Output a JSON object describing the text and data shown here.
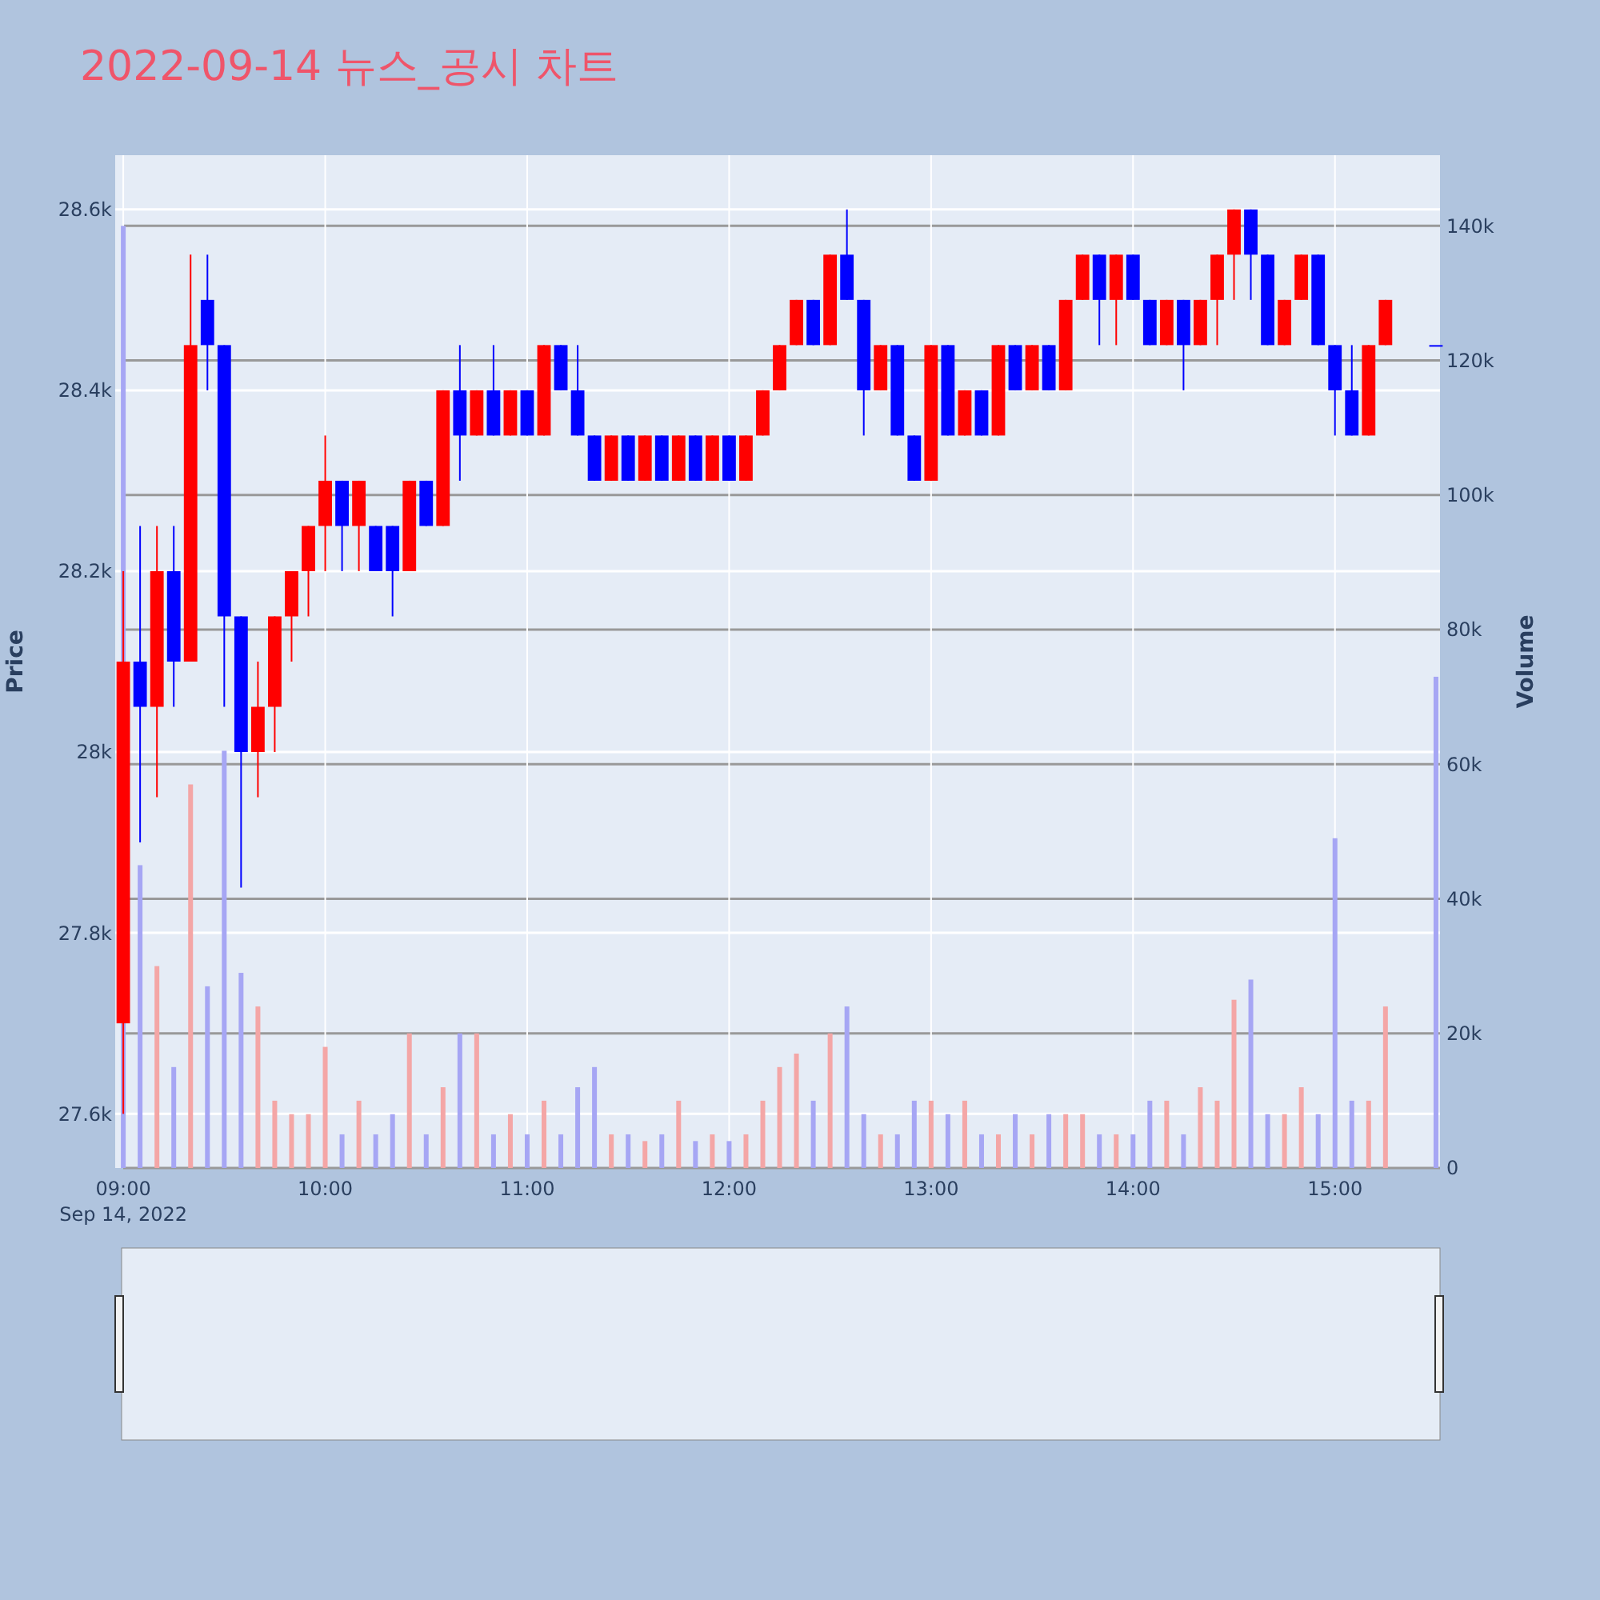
{
  "chart_data": {
    "type": "candlestick",
    "title": "2022-09-14 뉴스_공시 차트",
    "ylabel": "Price",
    "y2label": "Volume",
    "annotations": [
      "Sep 14, 2022"
    ],
    "x": [
      9,
      9.0833,
      9.1667,
      9.25,
      9.3333,
      9.4167,
      9.5,
      9.5833,
      9.6667,
      9.75,
      9.8333,
      9.9167,
      10,
      10.0833,
      10.1667,
      10.25,
      10.3333,
      10.4167,
      10.5,
      10.5833,
      10.6667,
      10.75,
      10.8333,
      10.9167,
      11,
      11.0833,
      11.1667,
      11.25,
      11.3333,
      11.4167,
      11.5,
      11.5833,
      11.6667,
      11.75,
      11.8333,
      11.9167,
      12,
      12.0833,
      12.1667,
      12.25,
      12.3333,
      12.4167,
      12.5,
      12.5833,
      12.6667,
      12.75,
      12.8333,
      12.9167,
      13,
      13.0833,
      13.1667,
      13.25,
      13.3333,
      13.4167,
      13.5,
      13.5833,
      13.6667,
      13.75,
      13.8333,
      13.9167,
      14,
      14.0833,
      14.1667,
      14.25,
      14.3333,
      14.4167,
      14.5,
      14.5833,
      14.6667,
      14.75,
      14.8333,
      14.9167,
      15,
      15.0833,
      15.1667,
      15.25,
      15.5
    ],
    "series": [
      {
        "ohlc": [
          [
            27700,
            28200,
            27600,
            28100
          ],
          [
            28100,
            28250,
            27900,
            28050
          ],
          [
            28050,
            28250,
            27950,
            28200
          ],
          [
            28200,
            28250,
            28050,
            28100
          ],
          [
            28100,
            28550,
            28100,
            28450
          ],
          [
            28500,
            28550,
            28400,
            28450
          ],
          [
            28450,
            28450,
            28050,
            28150
          ],
          [
            28150,
            28150,
            27850,
            28000
          ],
          [
            28000,
            28100,
            27950,
            28050
          ],
          [
            28050,
            28150,
            28000,
            28150
          ],
          [
            28150,
            28200,
            28100,
            28200
          ],
          [
            28200,
            28250,
            28150,
            28250
          ],
          [
            28250,
            28350,
            28200,
            28300
          ],
          [
            28300,
            28300,
            28200,
            28250
          ],
          [
            28250,
            28300,
            28200,
            28300
          ],
          [
            28250,
            28250,
            28200,
            28200
          ],
          [
            28250,
            28250,
            28150,
            28200
          ],
          [
            28200,
            28300,
            28200,
            28300
          ],
          [
            28300,
            28300,
            28250,
            28250
          ],
          [
            28250,
            28400,
            28250,
            28400
          ],
          [
            28400,
            28450,
            28300,
            28350
          ],
          [
            28350,
            28400,
            28350,
            28400
          ],
          [
            28400,
            28450,
            28350,
            28350
          ],
          [
            28350,
            28400,
            28350,
            28400
          ],
          [
            28400,
            28400,
            28350,
            28350
          ],
          [
            28350,
            28450,
            28350,
            28450
          ],
          [
            28450,
            28450,
            28400,
            28400
          ],
          [
            28400,
            28450,
            28350,
            28350
          ],
          [
            28350,
            28350,
            28300,
            28300
          ],
          [
            28300,
            28350,
            28300,
            28350
          ],
          [
            28350,
            28350,
            28300,
            28300
          ],
          [
            28300,
            28350,
            28300,
            28350
          ],
          [
            28350,
            28350,
            28300,
            28300
          ],
          [
            28300,
            28350,
            28300,
            28350
          ],
          [
            28350,
            28350,
            28300,
            28300
          ],
          [
            28300,
            28350,
            28300,
            28350
          ],
          [
            28350,
            28350,
            28300,
            28300
          ],
          [
            28300,
            28350,
            28300,
            28350
          ],
          [
            28350,
            28400,
            28350,
            28400
          ],
          [
            28400,
            28450,
            28400,
            28450
          ],
          [
            28450,
            28500,
            28450,
            28500
          ],
          [
            28500,
            28500,
            28450,
            28450
          ],
          [
            28450,
            28550,
            28450,
            28550
          ],
          [
            28550,
            28600,
            28500,
            28500
          ],
          [
            28500,
            28500,
            28350,
            28400
          ],
          [
            28400,
            28450,
            28400,
            28450
          ],
          [
            28450,
            28450,
            28350,
            28350
          ],
          [
            28350,
            28350,
            28300,
            28300
          ],
          [
            28300,
            28450,
            28300,
            28450
          ],
          [
            28450,
            28450,
            28350,
            28350
          ],
          [
            28350,
            28400,
            28350,
            28400
          ],
          [
            28400,
            28400,
            28350,
            28350
          ],
          [
            28350,
            28450,
            28350,
            28450
          ],
          [
            28450,
            28450,
            28400,
            28400
          ],
          [
            28400,
            28450,
            28400,
            28450
          ],
          [
            28450,
            28450,
            28400,
            28400
          ],
          [
            28400,
            28500,
            28400,
            28500
          ],
          [
            28500,
            28550,
            28500,
            28550
          ],
          [
            28550,
            28550,
            28450,
            28500
          ],
          [
            28500,
            28550,
            28450,
            28550
          ],
          [
            28550,
            28550,
            28500,
            28500
          ],
          [
            28500,
            28500,
            28450,
            28450
          ],
          [
            28450,
            28500,
            28450,
            28500
          ],
          [
            28500,
            28500,
            28400,
            28450
          ],
          [
            28450,
            28500,
            28450,
            28500
          ],
          [
            28500,
            28550,
            28450,
            28550
          ],
          [
            28550,
            28600,
            28500,
            28600
          ],
          [
            28600,
            28600,
            28500,
            28550
          ],
          [
            28550,
            28550,
            28450,
            28450
          ],
          [
            28450,
            28500,
            28450,
            28500
          ],
          [
            28500,
            28550,
            28500,
            28550
          ],
          [
            28550,
            28550,
            28450,
            28450
          ],
          [
            28450,
            28450,
            28350,
            28400
          ],
          [
            28400,
            28450,
            28350,
            28350
          ],
          [
            28350,
            28450,
            28350,
            28450
          ],
          [
            28450,
            28500,
            28450,
            28500
          ],
          [
            28450,
            28450,
            28450,
            28450
          ]
        ],
        "colors": [
          "#ff0000",
          "#0000ff",
          "#ff0000",
          "#0000ff",
          "#ff0000",
          "#0000ff",
          "#0000ff",
          "#0000ff",
          "#ff0000",
          "#ff0000",
          "#ff0000",
          "#ff0000",
          "#ff0000",
          "#0000ff",
          "#ff0000",
          "#0000ff",
          "#0000ff",
          "#ff0000",
          "#0000ff",
          "#ff0000",
          "#0000ff",
          "#ff0000",
          "#0000ff",
          "#ff0000",
          "#0000ff",
          "#ff0000",
          "#0000ff",
          "#0000ff",
          "#0000ff",
          "#ff0000",
          "#0000ff",
          "#ff0000",
          "#0000ff",
          "#ff0000",
          "#0000ff",
          "#ff0000",
          "#0000ff",
          "#ff0000",
          "#ff0000",
          "#ff0000",
          "#ff0000",
          "#0000ff",
          "#ff0000",
          "#0000ff",
          "#0000ff",
          "#ff0000",
          "#0000ff",
          "#0000ff",
          "#ff0000",
          "#0000ff",
          "#ff0000",
          "#0000ff",
          "#ff0000",
          "#0000ff",
          "#ff0000",
          "#0000ff",
          "#ff0000",
          "#ff0000",
          "#0000ff",
          "#ff0000",
          "#0000ff",
          "#0000ff",
          "#ff0000",
          "#0000ff",
          "#ff0000",
          "#ff0000",
          "#ff0000",
          "#0000ff",
          "#0000ff",
          "#ff0000",
          "#ff0000",
          "#0000ff",
          "#0000ff",
          "#0000ff",
          "#ff0000",
          "#ff0000",
          "#0000ff"
        ]
      },
      {
        "type": "bar",
        "axis": "y2",
        "values": [
          140000,
          45000,
          30000,
          15000,
          57000,
          27000,
          62000,
          29000,
          24000,
          10000,
          8000,
          8000,
          18000,
          5000,
          10000,
          5000,
          8000,
          20000,
          5000,
          12000,
          20000,
          20000,
          5000,
          8000,
          5000,
          10000,
          5000,
          12000,
          15000,
          5000,
          5000,
          4000,
          5000,
          10000,
          4000,
          5000,
          4000,
          5000,
          10000,
          15000,
          17000,
          10000,
          20000,
          24000,
          8000,
          5000,
          5000,
          10000,
          10000,
          8000,
          10000,
          5000,
          5000,
          8000,
          5000,
          8000,
          8000,
          8000,
          5000,
          5000,
          5000,
          10000,
          10000,
          5000,
          12000,
          10000,
          25000,
          28000,
          8000,
          8000,
          12000,
          8000,
          49000,
          10000,
          10000,
          24000,
          73000
        ],
        "colors": [
          "#a6a6f4",
          "#a6a6f4",
          "#f4a6a6",
          "#a6a6f4",
          "#f4a6a6",
          "#a6a6f4",
          "#a6a6f4",
          "#a6a6f4",
          "#f4a6a6",
          "#f4a6a6",
          "#f4a6a6",
          "#f4a6a6",
          "#f4a6a6",
          "#a6a6f4",
          "#f4a6a6",
          "#a6a6f4",
          "#a6a6f4",
          "#f4a6a6",
          "#a6a6f4",
          "#f4a6a6",
          "#a6a6f4",
          "#f4a6a6",
          "#a6a6f4",
          "#f4a6a6",
          "#a6a6f4",
          "#f4a6a6",
          "#a6a6f4",
          "#a6a6f4",
          "#a6a6f4",
          "#f4a6a6",
          "#a6a6f4",
          "#f4a6a6",
          "#a6a6f4",
          "#f4a6a6",
          "#a6a6f4",
          "#f4a6a6",
          "#a6a6f4",
          "#f4a6a6",
          "#f4a6a6",
          "#f4a6a6",
          "#f4a6a6",
          "#a6a6f4",
          "#f4a6a6",
          "#a6a6f4",
          "#a6a6f4",
          "#f4a6a6",
          "#a6a6f4",
          "#a6a6f4",
          "#f4a6a6",
          "#a6a6f4",
          "#f4a6a6",
          "#a6a6f4",
          "#f4a6a6",
          "#a6a6f4",
          "#f4a6a6",
          "#a6a6f4",
          "#f4a6a6",
          "#f4a6a6",
          "#a6a6f4",
          "#f4a6a6",
          "#a6a6f4",
          "#a6a6f4",
          "#f4a6a6",
          "#a6a6f4",
          "#f4a6a6",
          "#f4a6a6",
          "#f4a6a6",
          "#a6a6f4",
          "#a6a6f4",
          "#f4a6a6",
          "#f4a6a6",
          "#a6a6f4",
          "#a6a6f4",
          "#a6a6f4",
          "#f4a6a6",
          "#f4a6a6",
          "#a6a6f4"
        ]
      }
    ],
    "xlim": [
      8.96,
      15.52
    ],
    "xticks": [
      {
        "value": 9,
        "label": "09:00"
      },
      {
        "value": 10,
        "label": "10:00"
      },
      {
        "value": 11,
        "label": "11:00"
      },
      {
        "value": 12,
        "label": "12:00"
      },
      {
        "value": 13,
        "label": "13:00"
      },
      {
        "value": 14,
        "label": "14:00"
      },
      {
        "value": 15,
        "label": "15:00"
      }
    ],
    "ylim": [
      27540,
      28660
    ],
    "yticks": [
      {
        "value": 27600,
        "label": "27.6k"
      },
      {
        "value": 27800,
        "label": "27.8k"
      },
      {
        "value": 28000,
        "label": "28k"
      },
      {
        "value": 28200,
        "label": "28.2k"
      },
      {
        "value": 28400,
        "label": "28.4k"
      },
      {
        "value": 28600,
        "label": "28.6k"
      }
    ],
    "y2lim": [
      0,
      150500
    ],
    "y2ticks": [
      0,
      {
        "value": 20000,
        "label": "20k"
      },
      {
        "value": 40000,
        "label": "40k"
      },
      {
        "value": 60000,
        "label": "60k"
      },
      {
        "value": 80000,
        "label": "80k"
      },
      {
        "value": 100000,
        "label": "100k"
      },
      {
        "value": 120000,
        "label": "120k"
      },
      {
        "value": 140000,
        "label": "140k"
      }
    ],
    "grid": true
  }
}
